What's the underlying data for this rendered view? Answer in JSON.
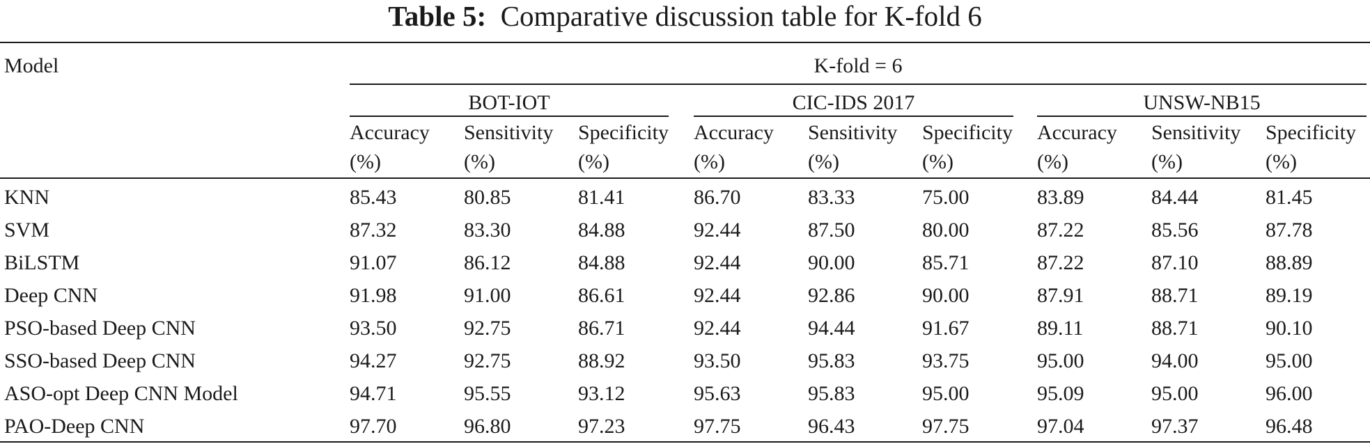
{
  "caption": {
    "label": "Table 5:",
    "title": "Comparative discussion table for K-fold 6"
  },
  "header": {
    "model_label": "Model",
    "kfold_label": "K-fold = 6",
    "datasets": [
      "BOT-IOT",
      "CIC-IDS 2017",
      "UNSW-NB15"
    ],
    "metrics": [
      {
        "name": "Accuracy",
        "unit": "(%)"
      },
      {
        "name": "Sensitivity",
        "unit": "(%)"
      },
      {
        "name": "Specificity",
        "unit": "(%)"
      }
    ]
  },
  "rows": [
    {
      "model": "KNN",
      "values": [
        "85.43",
        "80.85",
        "81.41",
        "86.70",
        "83.33",
        "75.00",
        "83.89",
        "84.44",
        "81.45"
      ]
    },
    {
      "model": "SVM",
      "values": [
        "87.32",
        "83.30",
        "84.88",
        "92.44",
        "87.50",
        "80.00",
        "87.22",
        "85.56",
        "87.78"
      ]
    },
    {
      "model": "BiLSTM",
      "values": [
        "91.07",
        "86.12",
        "84.88",
        "92.44",
        "90.00",
        "85.71",
        "87.22",
        "87.10",
        "88.89"
      ]
    },
    {
      "model": "Deep CNN",
      "values": [
        "91.98",
        "91.00",
        "86.61",
        "92.44",
        "92.86",
        "90.00",
        "87.91",
        "88.71",
        "89.19"
      ]
    },
    {
      "model": "PSO-based Deep CNN",
      "values": [
        "93.50",
        "92.75",
        "86.71",
        "92.44",
        "94.44",
        "91.67",
        "89.11",
        "88.71",
        "90.10"
      ]
    },
    {
      "model": "SSO-based Deep CNN",
      "values": [
        "94.27",
        "92.75",
        "88.92",
        "93.50",
        "95.83",
        "93.75",
        "95.00",
        "94.00",
        "95.00"
      ]
    },
    {
      "model": "ASO-opt Deep CNN Model",
      "values": [
        "94.71",
        "95.55",
        "93.12",
        "95.63",
        "95.83",
        "95.00",
        "95.09",
        "95.00",
        "96.00"
      ]
    },
    {
      "model": "PAO-Deep CNN",
      "values": [
        "97.70",
        "96.80",
        "97.23",
        "97.75",
        "96.43",
        "97.75",
        "97.04",
        "97.37",
        "96.48"
      ]
    }
  ]
}
